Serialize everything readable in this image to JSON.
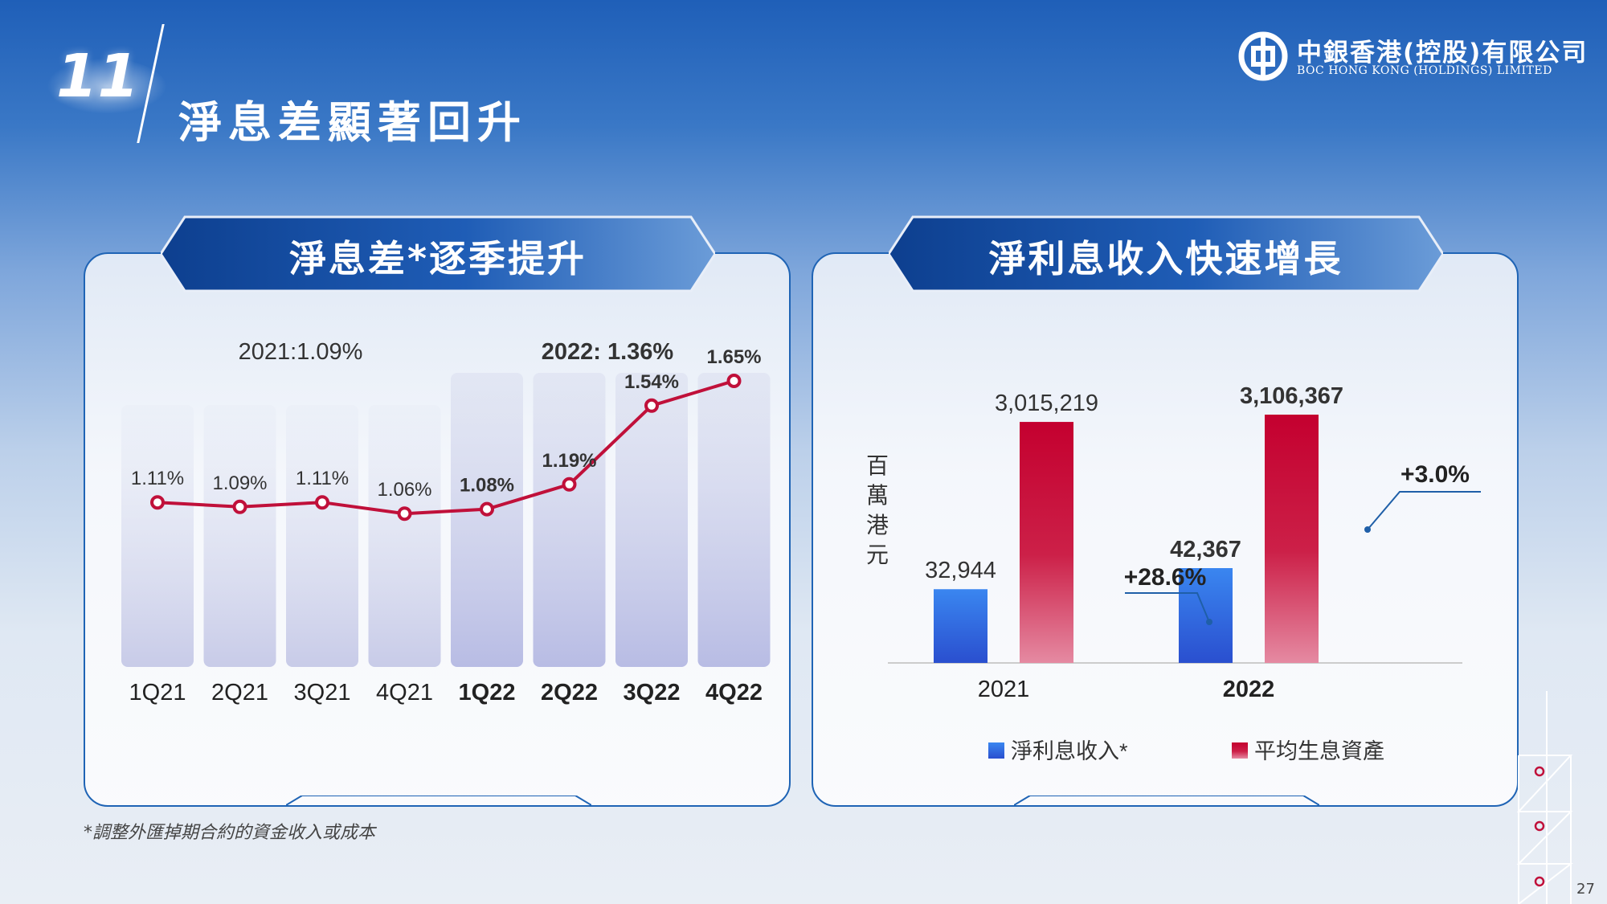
{
  "slide": {
    "number": "11",
    "title": "淨息差顯著回升",
    "footnote": "*調整外匯掉期合約的資金收入或成本",
    "page_number": "27"
  },
  "logo": {
    "name_cn": "中銀香港(控股)有限公司",
    "name_en": "BOC HONG KONG (HOLDINGS) LIMITED"
  },
  "colors": {
    "blue_bar": "#2f6fe0",
    "red_bar": "#c4002f",
    "line": "#c0103a",
    "frame": "#1f64b5"
  },
  "chart_data": [
    {
      "type": "line",
      "title": "淨息差*逐季提升",
      "categories": [
        "1Q21",
        "2Q21",
        "3Q21",
        "4Q21",
        "1Q22",
        "2Q22",
        "3Q22",
        "4Q22"
      ],
      "series": [
        {
          "values": [
            1.11,
            1.09,
            1.11,
            1.06,
            1.08,
            1.19,
            1.54,
            1.65
          ]
        }
      ],
      "data_labels": [
        "1.11%",
        "1.09%",
        "1.11%",
        "1.06%",
        "1.08%",
        "1.19%",
        "1.54%",
        "1.65%"
      ],
      "annotations": {
        "year_2021": "2021:1.09%",
        "year_2022": "2022: 1.36%"
      },
      "ylim": [
        0.4,
        1.9
      ],
      "grid": false
    },
    {
      "type": "bar",
      "title": "淨利息收入快速增長",
      "categories": [
        "2021",
        "2022"
      ],
      "ylabel": "百萬港元",
      "series": [
        {
          "name": "淨利息收入*",
          "values": [
            32944,
            42367
          ],
          "labels": [
            "32,944",
            "42,367"
          ]
        },
        {
          "name": "平均生息資產",
          "values": [
            3015219,
            3106367
          ],
          "labels": [
            "3,015,219",
            "3,106,367"
          ]
        }
      ],
      "growth": {
        "net_interest_income": "+28.6%",
        "interest_earning_assets": "+3.0%"
      },
      "legend": "bottom"
    }
  ]
}
